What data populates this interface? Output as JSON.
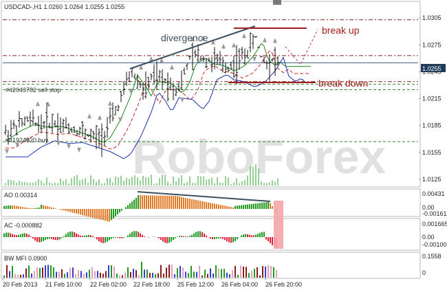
{
  "chart_data": {
    "type": "line",
    "symbol_header": "USDCAD-,H1  1.0260 1.0264 1.0255 1.0255",
    "last_price_badge": "1.0255",
    "y_ticks": [
      "1.0305",
      "1.0275",
      "1.0245",
      "1.0215",
      "1.0185",
      "1.0155",
      "1.0125"
    ],
    "ylim": [
      1.0118,
      1.0322
    ],
    "x_ticks": [
      "20 Feb 2013",
      "21 Feb 10:00",
      "22 Feb 02:00",
      "22 Feb 18:00",
      "25 Feb 12:00",
      "26 Feb 04:00",
      "26 Feb 20:00"
    ],
    "watermark": "RoboForex",
    "annotations": {
      "divergence": "divergence",
      "break_up": "break up",
      "break_down": "break down",
      "sell_stop": "#42043782 sell stop",
      "buy": "#41924920 buy"
    },
    "levels": [
      {
        "name": "upper-resistance",
        "value": 1.0303,
        "color": "#8b1a1a"
      },
      {
        "name": "mid-resistance",
        "value": 1.0263,
        "color": "#8b1a1a"
      },
      {
        "name": "current-price",
        "value": 1.0255,
        "color": "#3a5a80"
      },
      {
        "name": "sell-stop-line",
        "value": 1.0234,
        "color": "#8b1a1a"
      },
      {
        "name": "green-level-1",
        "value": 1.0231,
        "color": "#2e8b2e"
      },
      {
        "name": "green-level-2",
        "value": 1.0225,
        "color": "#2e8b2e"
      },
      {
        "name": "buy-line",
        "value": 1.0167,
        "color": "#2e8b2e"
      }
    ],
    "ao_panel": {
      "label": "AO 0.00314",
      "ticks": [
        "0.00431",
        "0.00",
        "-0.00161"
      ],
      "ylim": [
        -0.0024,
        0.005
      ]
    },
    "ac_panel": {
      "label": "AC -0.000882",
      "ticks": [
        "0.001665",
        "0.00",
        "-0.00100"
      ],
      "ylim": [
        -0.0018,
        0.0022
      ]
    },
    "mfi_panel": {
      "label": "BW MFI 0.0900",
      "ticks": [
        "0.1558",
        "0"
      ],
      "ylim": [
        0,
        0.185
      ]
    }
  }
}
